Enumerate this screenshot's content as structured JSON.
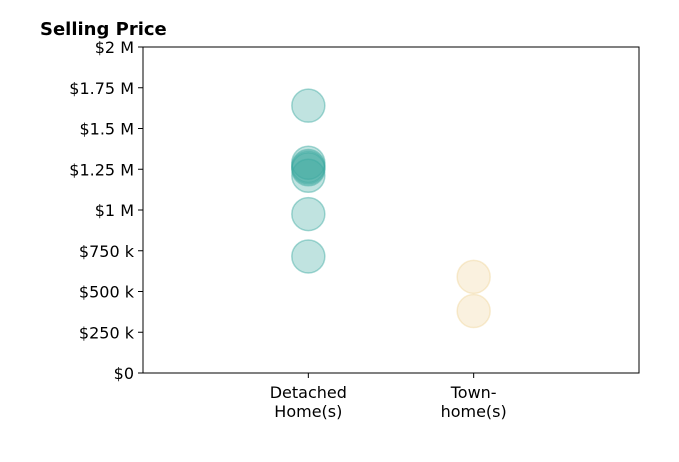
{
  "chart_data": {
    "type": "scatter",
    "title": "Selling Price",
    "xlabel": "",
    "ylabel": "",
    "ylim": [
      0,
      2000000
    ],
    "yticks": [
      0,
      250000,
      500000,
      750000,
      1000000,
      1250000,
      1500000,
      1750000,
      2000000
    ],
    "ytick_labels": [
      "$0",
      "$250 k",
      "$500 k",
      "$750 k",
      "$1 M",
      "$1.25 M",
      "$1.5 M",
      "$1.75 M",
      "$2 M"
    ],
    "categories": [
      "Detached Home(s)",
      "Town- home(s)"
    ],
    "category_lines": [
      [
        "Detached",
        "Home(s)"
      ],
      [
        "Town-",
        "home(s)"
      ]
    ],
    "xlim": [
      -1,
      2
    ],
    "grid": false,
    "series": [
      {
        "category": "Detached Home(s)",
        "color": "#3aa99f",
        "values": [
          1640000,
          1290000,
          1270000,
          1260000,
          1250000,
          1210000,
          975000,
          715000
        ]
      },
      {
        "category": "Town- home(s)",
        "color": "#f0d49a",
        "values": [
          590000,
          380000
        ]
      }
    ]
  }
}
